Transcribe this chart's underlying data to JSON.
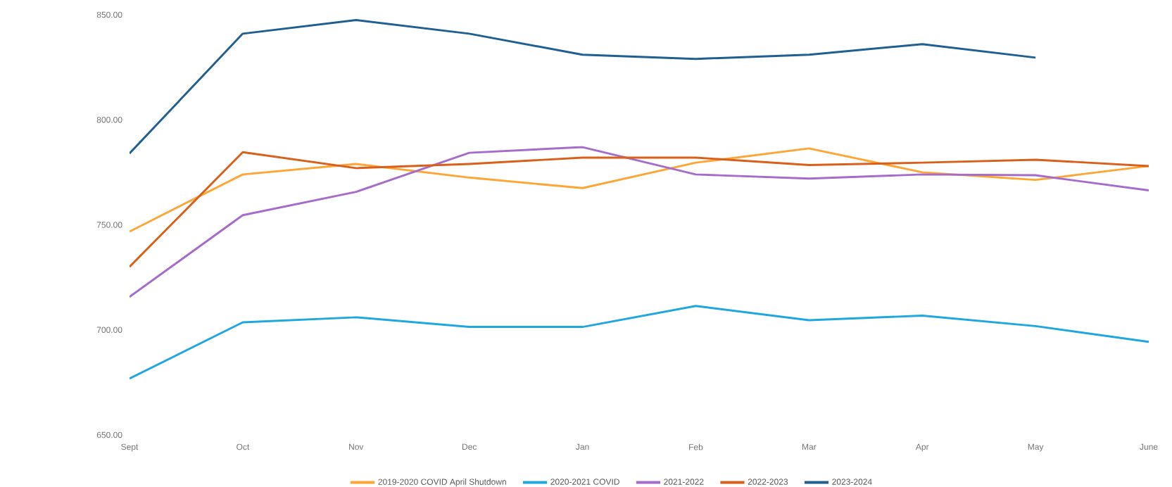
{
  "chart_data": {
    "type": "line",
    "categories": [
      "Sept",
      "Oct",
      "Nov",
      "Dec",
      "Jan",
      "Feb",
      "Mar",
      "Apr",
      "May",
      "June"
    ],
    "series": [
      {
        "name": "2019-2020 COVID April Shutdown",
        "color": "#ffa533",
        "values": [
          746.8,
          774,
          779,
          772.5,
          767.5,
          779.6,
          786.4,
          775,
          771.4,
          778
        ]
      },
      {
        "name": "2020-2021 COVID",
        "color": "#1ea7e1",
        "values": [
          676.8,
          703.6,
          706,
          701.4,
          701.4,
          711.4,
          704.6,
          706.8,
          701.8,
          694.3
        ]
      },
      {
        "name": "2021-2022",
        "color": "#a66ccc",
        "values": [
          715.7,
          754.6,
          765.7,
          784.3,
          787,
          774,
          772,
          774,
          773.6,
          766.4
        ]
      },
      {
        "name": "2022-2023",
        "color": "#d9601a",
        "values": [
          730,
          784.6,
          777,
          779,
          782,
          782,
          778.5,
          779.6,
          781,
          778
        ]
      },
      {
        "name": "2023-2024",
        "color": "#1f5f91",
        "values": [
          784,
          841,
          847.5,
          841,
          831,
          829,
          831,
          836,
          829.6,
          null
        ]
      }
    ],
    "ylim": [
      650,
      850
    ],
    "yticks": [
      {
        "value": 650,
        "label": "650.00"
      },
      {
        "value": 700,
        "label": "700.00"
      },
      {
        "value": 750,
        "label": "750.00"
      },
      {
        "value": 800,
        "label": "800.00"
      },
      {
        "value": 850,
        "label": "850.00"
      }
    ],
    "grid": false,
    "legend": "bottom",
    "marker": "none",
    "line_style": "solid"
  }
}
